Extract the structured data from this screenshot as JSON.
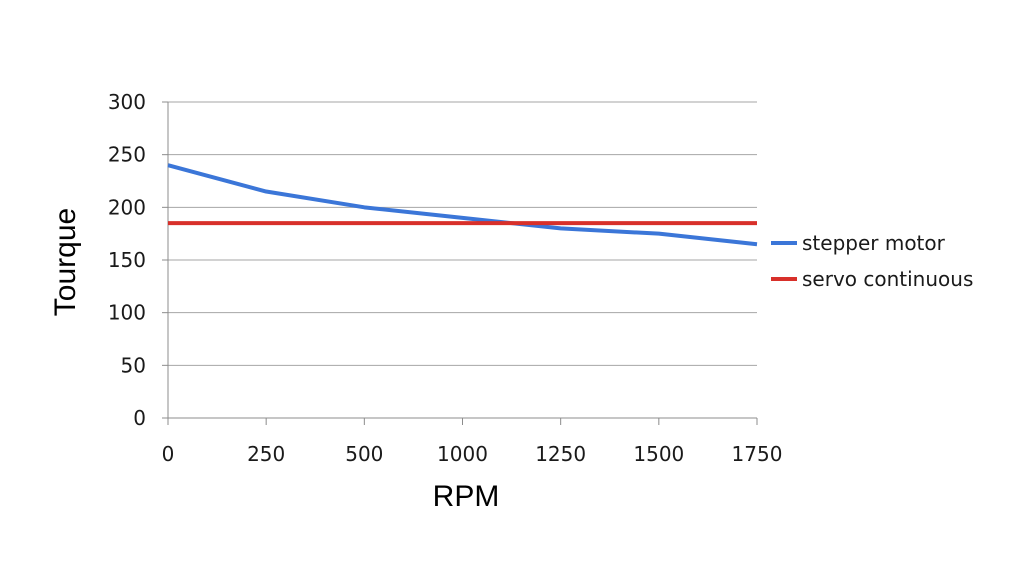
{
  "chart_data": {
    "type": "line",
    "xlabel": "RPM",
    "ylabel": "Tourque",
    "xlim": [
      0,
      1750
    ],
    "ylim": [
      0,
      300
    ],
    "x_ticks": [
      "0",
      "250",
      "500",
      "1000",
      "1250",
      "1500",
      "1750"
    ],
    "y_ticks": [
      "0",
      "50",
      "100",
      "150",
      "200",
      "250",
      "300"
    ],
    "grid": "horizontal",
    "legend": "right",
    "series": [
      {
        "name": "stepper motor",
        "color": "#3b76d8",
        "values": [
          240,
          215,
          200,
          190,
          180,
          175,
          165
        ]
      },
      {
        "name": "servo continuous",
        "color": "#d8302a",
        "values": [
          185,
          185,
          185,
          185,
          185,
          185,
          185
        ]
      }
    ]
  }
}
